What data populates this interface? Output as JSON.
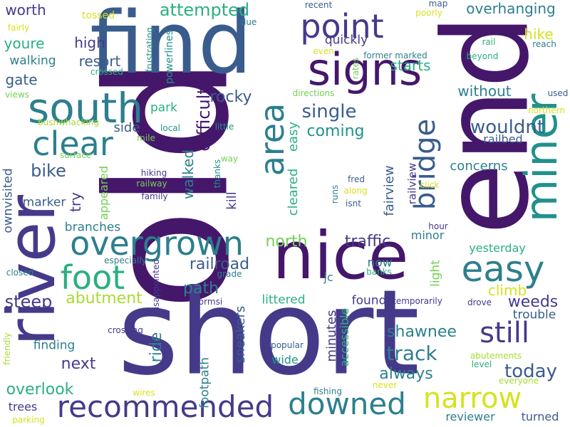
{
  "palette": {
    "dark_purple": "#45176b",
    "indigo": "#453a8a",
    "blue": "#3a5c8d",
    "teal": "#2d7f8e",
    "green_teal": "#21918c",
    "green": "#2ab07f",
    "lime": "#74cf55",
    "yellow_green": "#a9db33",
    "yellow": "#d6e21f"
  },
  "words": [
    {
      "text": "old"
    },
    {
      "text": "short"
    },
    {
      "text": "end"
    },
    {
      "text": "find"
    },
    {
      "text": "nice"
    },
    {
      "text": "river"
    },
    {
      "text": "signs"
    },
    {
      "text": "miner"
    },
    {
      "text": "south"
    },
    {
      "text": "overgrown"
    },
    {
      "text": "recommended"
    },
    {
      "text": "clear"
    },
    {
      "text": "area"
    },
    {
      "text": "easy"
    },
    {
      "text": "point"
    },
    {
      "text": "foot"
    },
    {
      "text": "downed"
    },
    {
      "text": "narrow"
    },
    {
      "text": "still"
    },
    {
      "text": "bridge"
    },
    {
      "text": "difficult"
    },
    {
      "text": "single"
    },
    {
      "text": "track"
    },
    {
      "text": "wouldnt"
    },
    {
      "text": "today"
    },
    {
      "text": "bike"
    },
    {
      "text": "railroad"
    },
    {
      "text": "steep"
    },
    {
      "text": "abutment"
    },
    {
      "text": "attempted"
    },
    {
      "text": "rocky"
    },
    {
      "text": "coming"
    },
    {
      "text": "north"
    },
    {
      "text": "traffic"
    },
    {
      "text": "shawnee"
    },
    {
      "text": "always"
    },
    {
      "text": "next"
    },
    {
      "text": "overlook"
    },
    {
      "text": "path"
    },
    {
      "text": "weeds"
    },
    {
      "text": "climb"
    },
    {
      "text": "resort"
    },
    {
      "text": "high"
    },
    {
      "text": "starts"
    },
    {
      "text": "without"
    },
    {
      "text": "overhanging"
    },
    {
      "text": "walked"
    },
    {
      "text": "ride"
    },
    {
      "text": "worth"
    },
    {
      "text": "youre"
    },
    {
      "text": "gate"
    },
    {
      "text": "walking"
    },
    {
      "text": "hike"
    },
    {
      "text": "concerns"
    },
    {
      "text": "fairview"
    },
    {
      "text": "railview"
    },
    {
      "text": "cleared"
    },
    {
      "text": "easy"
    },
    {
      "text": "kill"
    },
    {
      "text": "try"
    },
    {
      "text": "side"
    },
    {
      "text": "park"
    },
    {
      "text": "quickly"
    },
    {
      "text": "ownvisited"
    },
    {
      "text": "marker"
    },
    {
      "text": "branches"
    },
    {
      "text": "finding"
    },
    {
      "text": "trees"
    },
    {
      "text": "footpath"
    },
    {
      "text": "sneakers"
    },
    {
      "text": "minutes"
    },
    {
      "text": "accessible"
    },
    {
      "text": "found"
    },
    {
      "text": "littered"
    },
    {
      "text": "trouble"
    },
    {
      "text": "yesterday"
    },
    {
      "text": "now"
    },
    {
      "text": "railbed"
    },
    {
      "text": "minor"
    },
    {
      "text": "light"
    },
    {
      "text": "reviewer"
    },
    {
      "text": "turned"
    },
    {
      "text": "wide"
    },
    {
      "text": "jc"
    },
    {
      "text": "appeared"
    },
    {
      "text": "powerlines"
    },
    {
      "text": "tossed"
    },
    {
      "text": "crossed"
    },
    {
      "text": "frustrating"
    },
    {
      "text": "directions"
    },
    {
      "text": "due"
    },
    {
      "text": "recent"
    },
    {
      "text": "map"
    },
    {
      "text": "poorly"
    },
    {
      "text": "even"
    },
    {
      "text": "former marked"
    },
    {
      "text": "rates"
    },
    {
      "text": "rail"
    },
    {
      "text": "beyond"
    },
    {
      "text": "reach"
    },
    {
      "text": "used"
    },
    {
      "text": "northern"
    },
    {
      "text": "fairly"
    },
    {
      "text": "views"
    },
    {
      "text": "bushwhacking"
    },
    {
      "text": "surface"
    },
    {
      "text": "mile"
    },
    {
      "text": "local"
    },
    {
      "text": "little"
    },
    {
      "text": "way"
    },
    {
      "text": "thanks"
    },
    {
      "text": "hiking"
    },
    {
      "text": "railway"
    },
    {
      "text": "family"
    },
    {
      "text": "fred"
    },
    {
      "text": "along"
    },
    {
      "text": "isnt"
    },
    {
      "text": "runs"
    },
    {
      "text": "click"
    },
    {
      "text": "hour"
    },
    {
      "text": "especially"
    },
    {
      "text": "closed"
    },
    {
      "text": "grade"
    },
    {
      "text": "disappointed"
    },
    {
      "text": "stormsi"
    },
    {
      "text": "banks"
    },
    {
      "text": "temporarily"
    },
    {
      "text": "drove"
    },
    {
      "text": "crossing"
    },
    {
      "text": "friendly"
    },
    {
      "text": "popular"
    },
    {
      "text": "abutements"
    },
    {
      "text": "level"
    },
    {
      "text": "everyone"
    },
    {
      "text": "never"
    },
    {
      "text": "wires"
    },
    {
      "text": "fishing"
    },
    {
      "text": "parking"
    }
  ]
}
